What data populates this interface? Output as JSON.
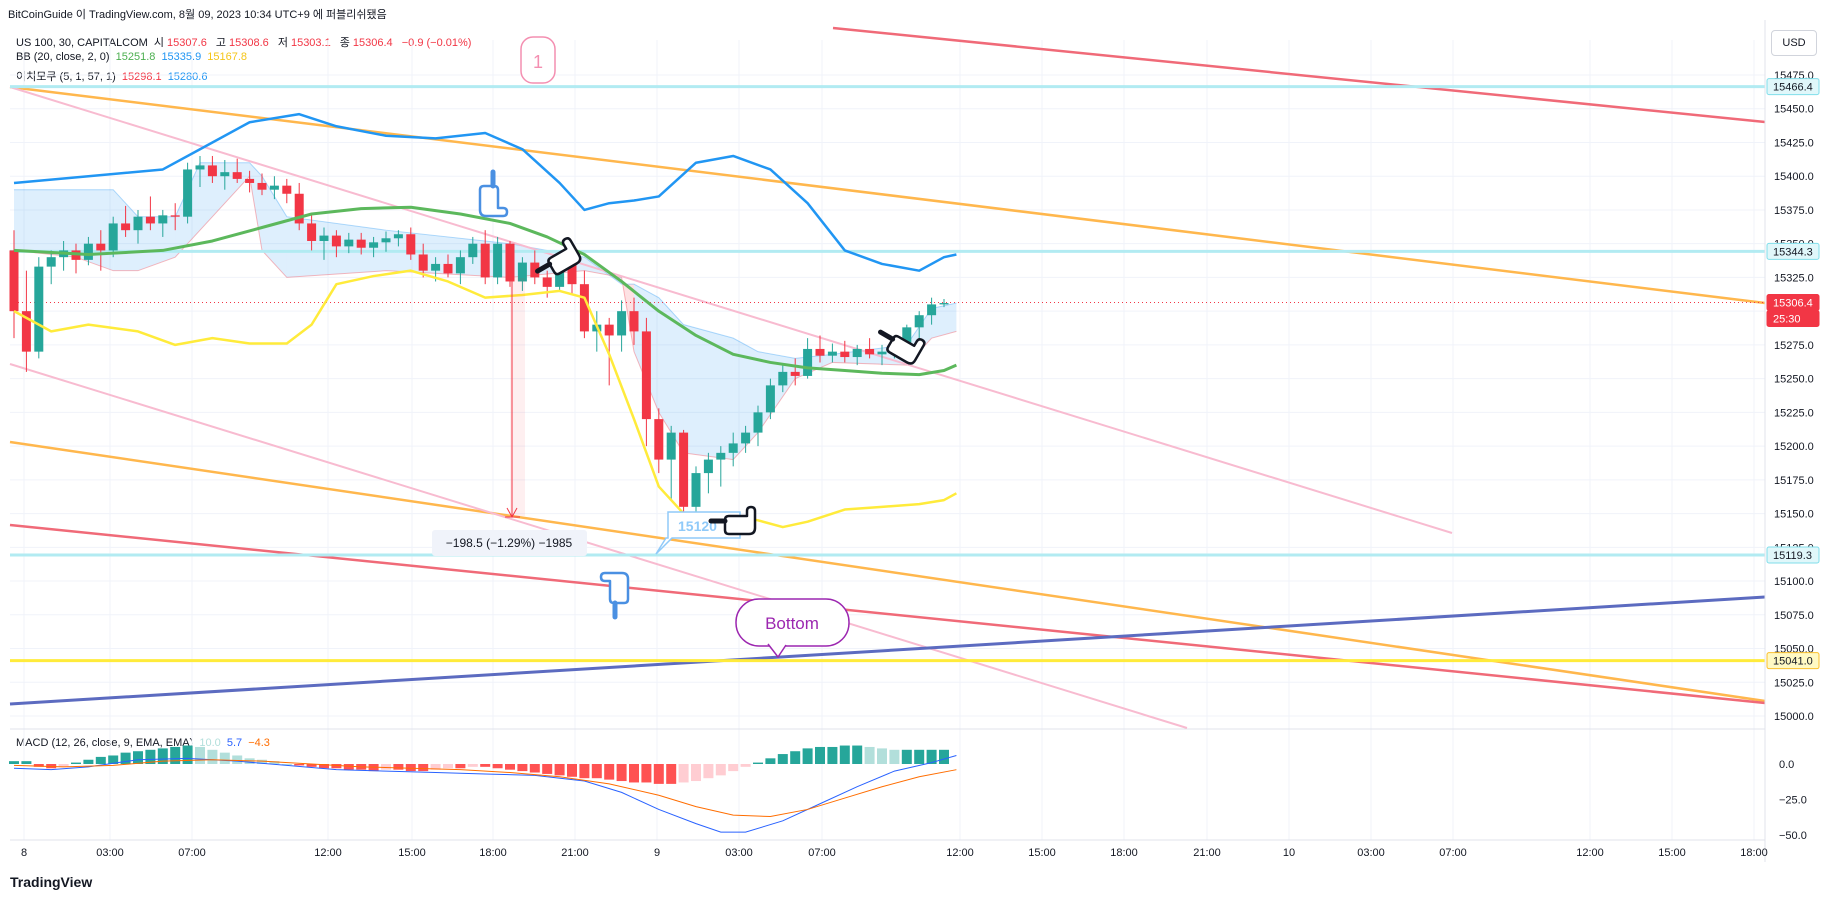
{
  "header": {
    "publish_line": "BitCoinGuide 이 TradingView.com, 8월 09, 2023 10:34 UTC+9 에 퍼블리쉬됐음",
    "symbol_line": {
      "name": "US 100, 30, CAPITALCOM",
      "open_label": "시",
      "open": "15307.6",
      "high_label": "고",
      "high": "15308.6",
      "low_label": "저",
      "low": "15303.1",
      "close_label": "종",
      "close": "15306.4",
      "change": "−0.9 (−0.01%)"
    },
    "bb_line": {
      "name": "BB (20, close, 2, 0)",
      "basis": "15251.8",
      "upper": "15335.9",
      "lower": "15167.8"
    },
    "ichimoku_line": {
      "name": "이치모쿠 (5, 1, 57, 1)",
      "v1": "15298.1",
      "v2": "15280.6"
    },
    "macd_line": {
      "name": "MACD (12, 26, close, 9, EMA, EMA)",
      "hist": "10.0",
      "macd": "5.7",
      "signal": "−4.3"
    }
  },
  "currency_button": "USD",
  "footer_logo": "TradingView",
  "colors": {
    "up": "#26a69a",
    "down": "#f23645",
    "bb_basis": "#5cb85c",
    "bb_upper": "#2196f3",
    "bb_lower": "#ffeb3b",
    "trend_red": "#f06a78",
    "trend_orange": "#ffb74d",
    "trend_pink": "#f8bbd0",
    "trend_navy": "#5c6bc0",
    "hline_cyan": "#b2ebf2",
    "hline_yellow": "#ffeb3b",
    "bottom_bubble": "#9c27b0"
  },
  "annotations": {
    "circle_label": "1",
    "bottom_label": "Bottom",
    "measure_label": "−198.5 (−1.29%) −1985",
    "price_callout": "15120"
  },
  "price_axis": {
    "ticks": [
      "15475.0",
      "15450.0",
      "15425.0",
      "15400.0",
      "15375.0",
      "15350.0",
      "15325.0",
      "15300.0",
      "15275.0",
      "15250.0",
      "15225.0",
      "15200.0",
      "15175.0",
      "15150.0",
      "15125.0",
      "15100.0",
      "15075.0",
      "15050.0",
      "15025.0",
      "15000.0"
    ],
    "labels": [
      {
        "text": "15466.4",
        "kind": "cyan"
      },
      {
        "text": "15344.3",
        "kind": "cyan"
      },
      {
        "text": "15306.4",
        "kind": "last"
      },
      {
        "text": "25:30",
        "kind": "countdown"
      },
      {
        "text": "15119.3",
        "kind": "cyan"
      },
      {
        "text": "15041.0",
        "kind": "yellow"
      }
    ]
  },
  "macd_axis": {
    "ticks": [
      "0.0",
      "−25.0",
      "−50.0"
    ]
  },
  "time_axis": {
    "ticks": [
      "8",
      "03:00",
      "07:00",
      "12:00",
      "15:00",
      "18:00",
      "21:00",
      "9",
      "03:00",
      "07:00",
      "12:00",
      "15:00",
      "18:00",
      "21:00",
      "10",
      "03:00",
      "07:00",
      "12:00",
      "15:00",
      "18:00"
    ]
  },
  "chart_data": {
    "type": "candlestick",
    "symbol": "US 100",
    "interval": "30",
    "y_range": [
      15000,
      15475
    ],
    "macd_range": [
      -50,
      0
    ],
    "candles": [
      [
        15345,
        15360,
        15280,
        15300
      ],
      [
        15300,
        15330,
        15255,
        15270
      ],
      [
        15270,
        15340,
        15265,
        15333
      ],
      [
        15333,
        15345,
        15320,
        15340
      ],
      [
        15340,
        15352,
        15330,
        15345
      ],
      [
        15345,
        15350,
        15328,
        15338
      ],
      [
        15338,
        15355,
        15334,
        15350
      ],
      [
        15350,
        15360,
        15330,
        15345
      ],
      [
        15345,
        15370,
        15340,
        15365
      ],
      [
        15365,
        15378,
        15355,
        15360
      ],
      [
        15360,
        15375,
        15350,
        15370
      ],
      [
        15370,
        15385,
        15360,
        15365
      ],
      [
        15365,
        15375,
        15355,
        15371
      ],
      [
        15371,
        15380,
        15360,
        15370
      ],
      [
        15370,
        15410,
        15365,
        15405
      ],
      [
        15405,
        15415,
        15392,
        15408
      ],
      [
        15408,
        15415,
        15395,
        15400
      ],
      [
        15400,
        15412,
        15390,
        15403
      ],
      [
        15403,
        15413,
        15395,
        15398
      ],
      [
        15398,
        15404,
        15388,
        15395
      ],
      [
        15395,
        15402,
        15386,
        15390
      ],
      [
        15390,
        15400,
        15383,
        15393
      ],
      [
        15393,
        15398,
        15380,
        15387
      ],
      [
        15387,
        15395,
        15360,
        15365
      ],
      [
        15365,
        15372,
        15345,
        15352
      ],
      [
        15352,
        15362,
        15338,
        15356
      ],
      [
        15356,
        15360,
        15340,
        15348
      ],
      [
        15348,
        15358,
        15343,
        15353
      ],
      [
        15353,
        15358,
        15342,
        15347
      ],
      [
        15347,
        15355,
        15340,
        15351
      ],
      [
        15351,
        15359,
        15344,
        15354
      ],
      [
        15354,
        15360,
        15348,
        15357
      ],
      [
        15357,
        15362,
        15338,
        15342
      ],
      [
        15342,
        15350,
        15325,
        15330
      ],
      [
        15330,
        15340,
        15322,
        15335
      ],
      [
        15335,
        15342,
        15325,
        15328
      ],
      [
        15328,
        15345,
        15320,
        15340
      ],
      [
        15340,
        15355,
        15335,
        15350
      ],
      [
        15350,
        15360,
        15320,
        15325
      ],
      [
        15325,
        15355,
        15320,
        15350
      ],
      [
        15350,
        15352,
        15318,
        15322
      ],
      [
        15322,
        15340,
        15315,
        15336
      ],
      [
        15336,
        15345,
        15320,
        15325
      ],
      [
        15325,
        15330,
        15310,
        15318
      ],
      [
        15318,
        15340,
        15315,
        15335
      ],
      [
        15335,
        15338,
        15312,
        15320
      ],
      [
        15320,
        15330,
        15280,
        15285
      ],
      [
        15285,
        15300,
        15270,
        15290
      ],
      [
        15290,
        15295,
        15245,
        15282
      ],
      [
        15282,
        15308,
        15270,
        15300
      ],
      [
        15300,
        15310,
        15275,
        15285
      ],
      [
        15285,
        15295,
        15200,
        15220
      ],
      [
        15220,
        15228,
        15180,
        15190
      ],
      [
        15190,
        15215,
        15160,
        15210
      ],
      [
        15210,
        15212,
        15150,
        15155
      ],
      [
        15155,
        15185,
        15140,
        15180
      ],
      [
        15180,
        15195,
        15165,
        15190
      ],
      [
        15190,
        15200,
        15170,
        15195
      ],
      [
        15195,
        15210,
        15185,
        15202
      ],
      [
        15202,
        15215,
        15195,
        15210
      ],
      [
        15210,
        15230,
        15200,
        15225
      ],
      [
        15225,
        15250,
        15220,
        15245
      ],
      [
        15245,
        15260,
        15240,
        15255
      ],
      [
        15255,
        15265,
        15245,
        15252
      ],
      [
        15252,
        15280,
        15250,
        15272
      ],
      [
        15272,
        15282,
        15262,
        15267
      ],
      [
        15267,
        15276,
        15262,
        15270
      ],
      [
        15270,
        15278,
        15262,
        15266
      ],
      [
        15266,
        15275,
        15260,
        15272
      ],
      [
        15272,
        15280,
        15265,
        15268
      ],
      [
        15268,
        15275,
        15260,
        15270
      ],
      [
        15270,
        15278,
        15265,
        15274
      ],
      [
        15274,
        15290,
        15270,
        15288
      ],
      [
        15288,
        15300,
        15280,
        15297
      ],
      [
        15297,
        15310,
        15290,
        15305
      ],
      [
        15305,
        15309,
        15303,
        15306
      ]
    ],
    "bb_upper": [
      [
        0,
        15395
      ],
      [
        6,
        15400
      ],
      [
        12,
        15405
      ],
      [
        15,
        15420
      ],
      [
        19,
        15440
      ],
      [
        23,
        15446
      ],
      [
        26,
        15437
      ],
      [
        30,
        15430
      ],
      [
        34,
        15428
      ],
      [
        38,
        15432
      ],
      [
        41,
        15420
      ],
      [
        44,
        15395
      ],
      [
        46,
        15375
      ],
      [
        48,
        15380
      ],
      [
        50,
        15382
      ],
      [
        52,
        15385
      ],
      [
        55,
        15410
      ],
      [
        58,
        15415
      ],
      [
        61,
        15405
      ],
      [
        64,
        15380
      ],
      [
        67,
        15345
      ],
      [
        70,
        15335
      ],
      [
        73,
        15330
      ],
      [
        75,
        15340
      ],
      [
        76,
        15342
      ]
    ],
    "bb_basis": [
      [
        0,
        15345
      ],
      [
        6,
        15342
      ],
      [
        12,
        15345
      ],
      [
        16,
        15352
      ],
      [
        20,
        15362
      ],
      [
        24,
        15372
      ],
      [
        28,
        15376
      ],
      [
        32,
        15377
      ],
      [
        36,
        15372
      ],
      [
        40,
        15365
      ],
      [
        43,
        15355
      ],
      [
        46,
        15342
      ],
      [
        49,
        15322
      ],
      [
        52,
        15300
      ],
      [
        55,
        15282
      ],
      [
        58,
        15268
      ],
      [
        61,
        15262
      ],
      [
        64,
        15258
      ],
      [
        67,
        15256
      ],
      [
        70,
        15254
      ],
      [
        73,
        15253
      ],
      [
        75,
        15256
      ],
      [
        76,
        15260
      ]
    ],
    "bb_lower": [
      [
        0,
        15300
      ],
      [
        3,
        15285
      ],
      [
        6,
        15290
      ],
      [
        10,
        15285
      ],
      [
        13,
        15275
      ],
      [
        16,
        15280
      ],
      [
        19,
        15276
      ],
      [
        22,
        15276
      ],
      [
        24,
        15290
      ],
      [
        26,
        15320
      ],
      [
        29,
        15326
      ],
      [
        32,
        15330
      ],
      [
        35,
        15322
      ],
      [
        38,
        15310
      ],
      [
        41,
        15312
      ],
      [
        44,
        15315
      ],
      [
        46,
        15310
      ],
      [
        48,
        15268
      ],
      [
        50,
        15220
      ],
      [
        52,
        15170
      ],
      [
        54,
        15150
      ],
      [
        56,
        15148
      ],
      [
        58,
        15148
      ],
      [
        60,
        15145
      ],
      [
        62,
        15140
      ],
      [
        64,
        15144
      ],
      [
        67,
        15153
      ],
      [
        70,
        15155
      ],
      [
        73,
        15157
      ],
      [
        75,
        15160
      ],
      [
        76,
        15165
      ]
    ],
    "ichimoku_cloud": [
      [
        0,
        15390,
        15345
      ],
      [
        5,
        15390,
        15340
      ],
      [
        8,
        15390,
        15330
      ],
      [
        10,
        15370,
        15330
      ],
      [
        13,
        15370,
        15340
      ],
      [
        15,
        15410,
        15360
      ],
      [
        19,
        15410,
        15400
      ],
      [
        20,
        15400,
        15345
      ],
      [
        22,
        15370,
        15325
      ],
      [
        30,
        15360,
        15330
      ],
      [
        40,
        15350,
        15325
      ],
      [
        46,
        15340,
        15330
      ],
      [
        49,
        15320,
        15325
      ],
      [
        50,
        15320,
        15270
      ],
      [
        52,
        15310,
        15225
      ],
      [
        54,
        15290,
        15195
      ],
      [
        58,
        15280,
        15190
      ],
      [
        60,
        15270,
        15210
      ],
      [
        63,
        15265,
        15250
      ],
      [
        66,
        15268,
        15262
      ],
      [
        72,
        15275,
        15260
      ],
      [
        74,
        15302,
        15280
      ],
      [
        76,
        15306,
        15285
      ]
    ],
    "macd": {
      "histogram": [
        2,
        2,
        -2,
        -3,
        -2,
        1,
        3,
        5,
        6,
        8,
        9,
        10,
        11,
        12,
        13,
        12,
        10,
        8,
        6,
        4,
        3,
        2,
        0,
        -1,
        -2,
        -3,
        -3,
        -4,
        -4,
        -5,
        -4,
        -4,
        -5,
        -5,
        -4,
        -3,
        -3,
        -2,
        -2,
        -3,
        -4,
        -5,
        -6,
        -7,
        -8,
        -9,
        -10,
        -10,
        -11,
        -12,
        -13,
        -13,
        -14,
        -14,
        -13,
        -12,
        -10,
        -8,
        -5,
        -2,
        1,
        4,
        7,
        9,
        11,
        12,
        12,
        13,
        13,
        12,
        11,
        10,
        10,
        10,
        10,
        10
      ],
      "macd_line": [
        [
          0,
          -3
        ],
        [
          3,
          -4
        ],
        [
          6,
          -2
        ],
        [
          10,
          3
        ],
        [
          14,
          4
        ],
        [
          18,
          2
        ],
        [
          22,
          -1
        ],
        [
          26,
          -4
        ],
        [
          30,
          -5
        ],
        [
          34,
          -6
        ],
        [
          38,
          -7
        ],
        [
          42,
          -8
        ],
        [
          46,
          -12
        ],
        [
          49,
          -20
        ],
        [
          52,
          -32
        ],
        [
          55,
          -42
        ],
        [
          57,
          -48
        ],
        [
          59,
          -48
        ],
        [
          62,
          -40
        ],
        [
          65,
          -28
        ],
        [
          68,
          -16
        ],
        [
          71,
          -5
        ],
        [
          74,
          1
        ],
        [
          76,
          6
        ]
      ],
      "signal_line": [
        [
          0,
          -1
        ],
        [
          4,
          -2
        ],
        [
          8,
          -1
        ],
        [
          12,
          2
        ],
        [
          16,
          3
        ],
        [
          20,
          2
        ],
        [
          24,
          0
        ],
        [
          28,
          -2
        ],
        [
          32,
          -3
        ],
        [
          36,
          -4
        ],
        [
          40,
          -6
        ],
        [
          44,
          -9
        ],
        [
          48,
          -14
        ],
        [
          52,
          -22
        ],
        [
          55,
          -30
        ],
        [
          58,
          -36
        ],
        [
          61,
          -37
        ],
        [
          64,
          -32
        ],
        [
          67,
          -24
        ],
        [
          70,
          -16
        ],
        [
          73,
          -9
        ],
        [
          76,
          -4
        ]
      ]
    }
  }
}
